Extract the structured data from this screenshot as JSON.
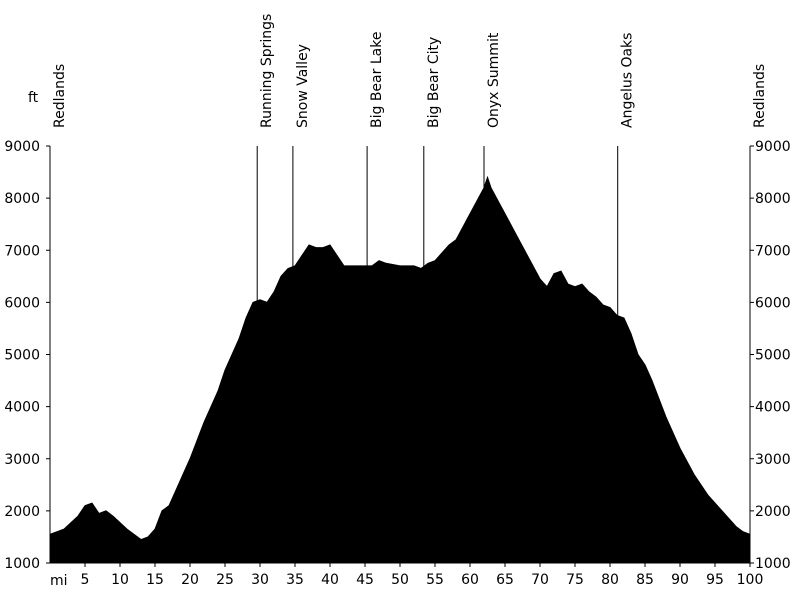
{
  "chart_data": {
    "type": "area",
    "y_label": "ft",
    "x_label": "mi",
    "color": "#000000",
    "x": [
      0,
      2,
      4,
      5,
      6,
      7,
      8,
      9,
      11,
      13,
      14,
      15,
      16,
      17,
      18,
      19,
      20,
      22,
      24,
      25,
      27,
      28,
      29,
      30,
      31,
      32,
      33,
      34,
      35,
      36,
      37,
      38,
      39,
      40,
      41,
      42,
      44,
      46,
      47,
      48,
      50,
      52,
      53,
      54,
      55,
      57,
      58,
      60,
      62,
      62.5,
      63,
      65,
      67,
      69,
      70,
      71,
      72,
      73,
      74,
      75,
      76,
      77,
      78,
      79,
      80,
      81,
      82,
      83,
      84,
      85,
      86,
      88,
      90,
      92,
      94,
      96,
      98,
      99,
      100
    ],
    "values": [
      1550,
      1650,
      1900,
      2100,
      2150,
      1950,
      2000,
      1900,
      1650,
      1450,
      1500,
      1650,
      2000,
      2100,
      2400,
      2700,
      3000,
      3700,
      4300,
      4700,
      5300,
      5700,
      6000,
      6050,
      6000,
      6200,
      6500,
      6650,
      6700,
      6900,
      7100,
      7050,
      7050,
      7100,
      6900,
      6700,
      6700,
      6700,
      6800,
      6750,
      6700,
      6700,
      6650,
      6750,
      6800,
      7100,
      7200,
      7700,
      8200,
      8400,
      8200,
      7700,
      7200,
      6700,
      6450,
      6300,
      6550,
      6600,
      6350,
      6300,
      6350,
      6200,
      6100,
      5950,
      5900,
      5750,
      5700,
      5400,
      5000,
      4800,
      4500,
      3800,
      3200,
      2700,
      2300,
      2000,
      1700,
      1600,
      1550
    ],
    "xlim": [
      0,
      100
    ],
    "xticks": [
      5,
      10,
      15,
      20,
      25,
      30,
      35,
      40,
      45,
      50,
      55,
      60,
      65,
      70,
      75,
      80,
      85,
      90,
      95,
      100
    ],
    "ylim": [
      1000,
      9000
    ],
    "yticks": [
      1000,
      2000,
      3000,
      4000,
      5000,
      6000,
      7000,
      8000,
      9000
    ],
    "annotations": [
      {
        "text": "Redlands",
        "x": 0
      },
      {
        "text": "Running Springs",
        "x": 29.6
      },
      {
        "text": "Snow Valley",
        "x": 34.7
      },
      {
        "text": "Big Bear Lake",
        "x": 45.3
      },
      {
        "text": "Big Bear City",
        "x": 53.4
      },
      {
        "text": "Onyx Summit",
        "x": 62
      },
      {
        "text": "Angelus Oaks",
        "x": 81.1
      },
      {
        "text": "Redlands",
        "x": 100
      }
    ]
  }
}
